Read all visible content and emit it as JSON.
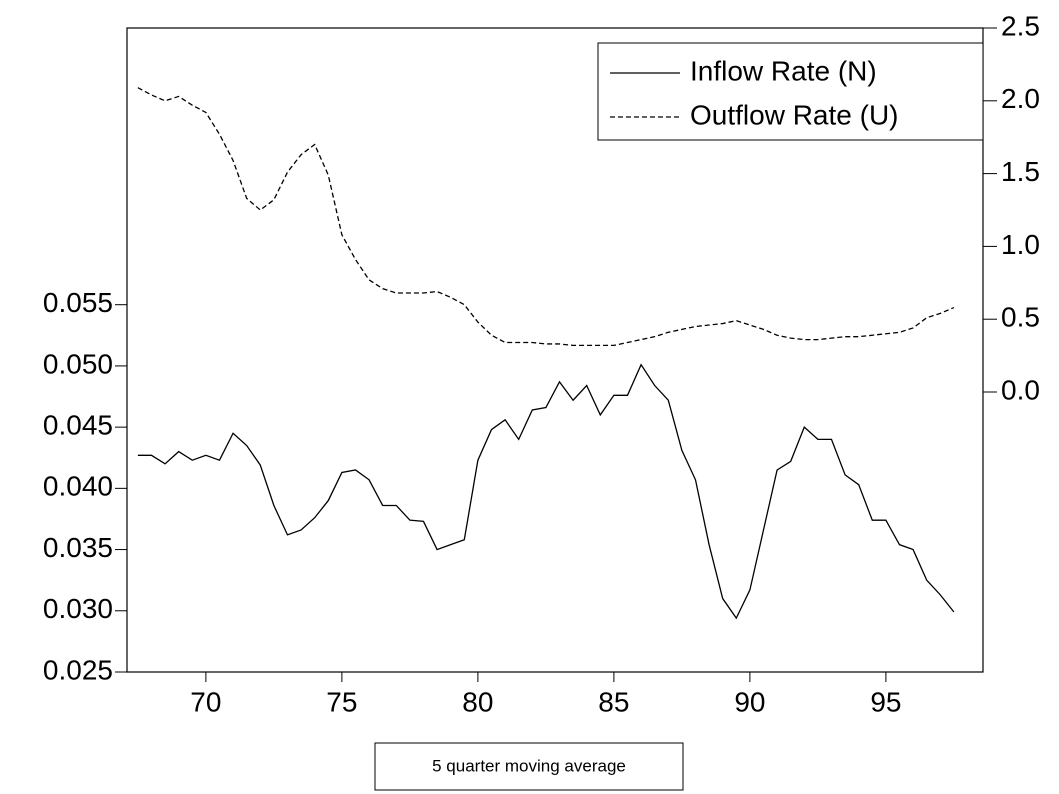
{
  "chart_data": {
    "type": "line",
    "annotation": "5 quarter moving average",
    "x": [
      67.5,
      68,
      68.5,
      69,
      69.5,
      70,
      70.5,
      71,
      71.5,
      72,
      72.5,
      73,
      73.5,
      74,
      74.5,
      75,
      75.5,
      76,
      76.5,
      77,
      77.5,
      78,
      78.5,
      79,
      79.5,
      80,
      80.5,
      81,
      81.5,
      82,
      82.5,
      83,
      83.5,
      84,
      84.5,
      85,
      85.5,
      86,
      86.5,
      87,
      87.5,
      88,
      88.5,
      89,
      89.5,
      90,
      90.5,
      91,
      91.5,
      92,
      92.5,
      93,
      93.5,
      94,
      94.5,
      95,
      95.5,
      96,
      96.5,
      97,
      97.5
    ],
    "series": [
      {
        "name": "Inflow Rate (N)",
        "color": "#000000",
        "style": "solid",
        "axis": "y",
        "values": [
          0.0427,
          0.0427,
          0.042,
          0.043,
          0.0423,
          0.0427,
          0.0423,
          0.0445,
          0.0435,
          0.0419,
          0.0386,
          0.0362,
          0.0366,
          0.0376,
          0.039,
          0.0413,
          0.0415,
          0.0407,
          0.0386,
          0.0386,
          0.0374,
          0.0373,
          0.035,
          0.0354,
          0.0358,
          0.0423,
          0.0448,
          0.0456,
          0.044,
          0.0464,
          0.0466,
          0.0487,
          0.0472,
          0.0484,
          0.046,
          0.0476,
          0.0476,
          0.0501,
          0.0484,
          0.0472,
          0.0431,
          0.0407,
          0.0354,
          0.031,
          0.0294,
          0.0317,
          0.0366,
          0.0415,
          0.0422,
          0.045,
          0.044,
          0.044,
          0.0411,
          0.0403,
          0.0374,
          0.0374,
          0.0354,
          0.035,
          0.0325,
          0.0313,
          0.0299
        ]
      },
      {
        "name": "Outflow Rate (U)",
        "color": "#000000",
        "style": "dashed",
        "axis": "y2",
        "values": [
          2.09,
          2.04,
          2.0,
          2.03,
          1.97,
          1.92,
          1.77,
          1.59,
          1.33,
          1.25,
          1.32,
          1.51,
          1.63,
          1.7,
          1.49,
          1.08,
          0.91,
          0.77,
          0.71,
          0.68,
          0.68,
          0.68,
          0.69,
          0.65,
          0.6,
          0.48,
          0.39,
          0.34,
          0.34,
          0.34,
          0.33,
          0.33,
          0.32,
          0.32,
          0.32,
          0.32,
          0.34,
          0.36,
          0.38,
          0.41,
          0.43,
          0.45,
          0.46,
          0.47,
          0.49,
          0.46,
          0.43,
          0.39,
          0.37,
          0.36,
          0.36,
          0.37,
          0.38,
          0.38,
          0.39,
          0.4,
          0.41,
          0.44,
          0.51,
          0.54,
          0.58
        ]
      }
    ],
    "xlim": [
      67.1,
      98.57
    ],
    "xticks": [
      70,
      75,
      80,
      85,
      90,
      95
    ],
    "ylim": [
      0.025,
      0.0776
    ],
    "yticks": [
      0.025,
      {
        "value": 0.03,
        "label": "0.030"
      },
      0.035,
      {
        "value": 0.04,
        "label": "0.040"
      },
      0.045,
      {
        "value": 0.05,
        "label": "0.050"
      },
      0.055
    ],
    "y2lim": [
      -1.923,
      2.5
    ],
    "y2ticks": [
      {
        "value": 0,
        "label": "0.0"
      },
      0.5,
      {
        "value": 1,
        "label": "1.0"
      },
      1.5,
      {
        "value": 2,
        "label": "2.0"
      },
      2.5
    ],
    "legend": "upper right",
    "grid": false
  }
}
